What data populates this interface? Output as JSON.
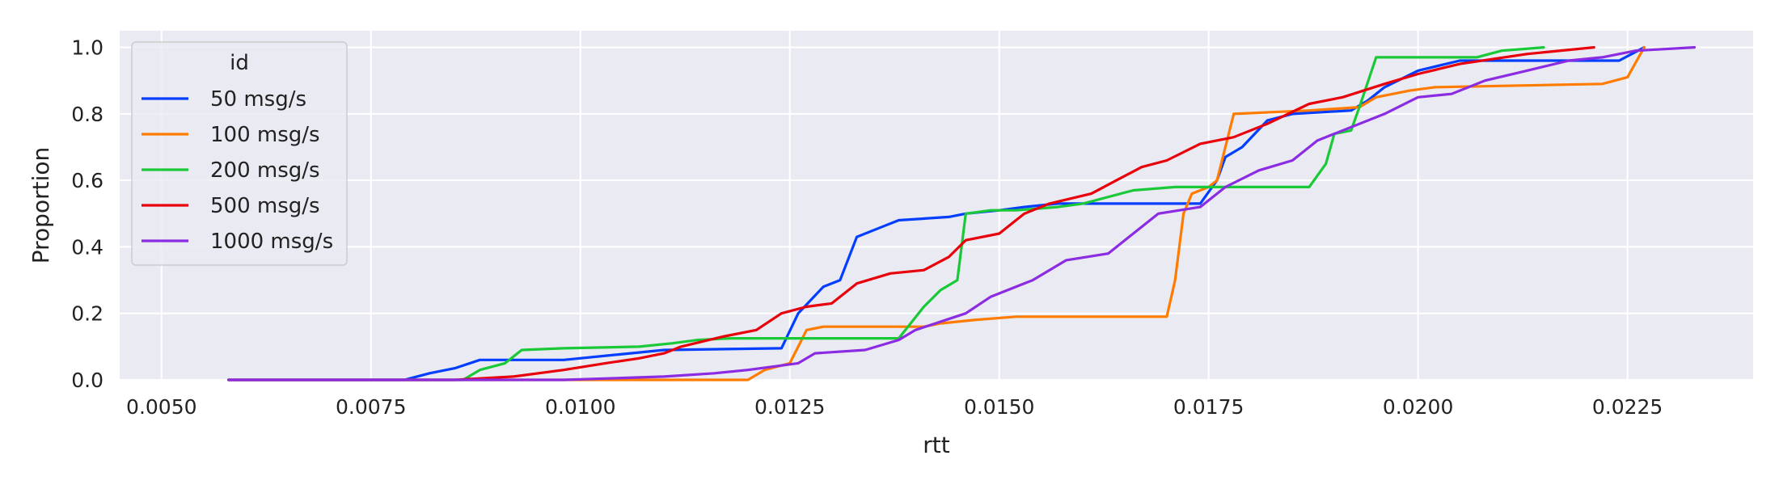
{
  "chart_data": {
    "type": "line",
    "title": "",
    "xlabel": "rtt",
    "ylabel": "Proportion",
    "xlim": [
      0.0045,
      0.024
    ],
    "ylim": [
      0.0,
      1.05
    ],
    "xticks": [
      0.005,
      0.0075,
      0.01,
      0.0125,
      0.015,
      0.0175,
      0.02,
      0.0225
    ],
    "xtick_labels": [
      "0.0050",
      "0.0075",
      "0.0100",
      "0.0125",
      "0.0150",
      "0.0175",
      "0.0200",
      "0.0225"
    ],
    "yticks": [
      0.0,
      0.2,
      0.4,
      0.6,
      0.8,
      1.0
    ],
    "ytick_labels": [
      "0.0",
      "0.2",
      "0.4",
      "0.6",
      "0.8",
      "1.0"
    ],
    "grid": true,
    "legend": {
      "title": "id",
      "position": "top-left"
    },
    "series": [
      {
        "name": "50 msg/s",
        "color": "#023eff",
        "points": [
          [
            0.0058,
            0.0
          ],
          [
            0.0079,
            0.0
          ],
          [
            0.0082,
            0.02
          ],
          [
            0.0085,
            0.035
          ],
          [
            0.0088,
            0.06
          ],
          [
            0.0098,
            0.06
          ],
          [
            0.0106,
            0.08
          ],
          [
            0.011,
            0.09
          ],
          [
            0.0124,
            0.095
          ],
          [
            0.0126,
            0.2
          ],
          [
            0.0129,
            0.28
          ],
          [
            0.0131,
            0.3
          ],
          [
            0.0133,
            0.43
          ],
          [
            0.0136,
            0.46
          ],
          [
            0.0138,
            0.48
          ],
          [
            0.0144,
            0.49
          ],
          [
            0.0146,
            0.5
          ],
          [
            0.015,
            0.51
          ],
          [
            0.0153,
            0.52
          ],
          [
            0.0157,
            0.53
          ],
          [
            0.0174,
            0.53
          ],
          [
            0.0176,
            0.6
          ],
          [
            0.0177,
            0.67
          ],
          [
            0.0179,
            0.7
          ],
          [
            0.0182,
            0.78
          ],
          [
            0.0185,
            0.8
          ],
          [
            0.0192,
            0.81
          ],
          [
            0.0194,
            0.84
          ],
          [
            0.0196,
            0.88
          ],
          [
            0.02,
            0.93
          ],
          [
            0.0205,
            0.96
          ],
          [
            0.0224,
            0.96
          ],
          [
            0.0227,
            1.0
          ]
        ]
      },
      {
        "name": "100 msg/s",
        "color": "#ff7c00",
        "points": [
          [
            0.0058,
            0.0
          ],
          [
            0.012,
            0.0
          ],
          [
            0.0122,
            0.03
          ],
          [
            0.0125,
            0.05
          ],
          [
            0.0126,
            0.1
          ],
          [
            0.0127,
            0.15
          ],
          [
            0.0129,
            0.16
          ],
          [
            0.0141,
            0.16
          ],
          [
            0.0143,
            0.17
          ],
          [
            0.0147,
            0.18
          ],
          [
            0.0152,
            0.19
          ],
          [
            0.017,
            0.19
          ],
          [
            0.0171,
            0.3
          ],
          [
            0.0172,
            0.5
          ],
          [
            0.0173,
            0.56
          ],
          [
            0.0175,
            0.58
          ],
          [
            0.0176,
            0.6
          ],
          [
            0.0178,
            0.8
          ],
          [
            0.0187,
            0.81
          ],
          [
            0.0193,
            0.82
          ],
          [
            0.0195,
            0.85
          ],
          [
            0.0199,
            0.87
          ],
          [
            0.0202,
            0.88
          ],
          [
            0.0222,
            0.89
          ],
          [
            0.0225,
            0.91
          ],
          [
            0.0227,
            1.0
          ]
        ]
      },
      {
        "name": "200 msg/s",
        "color": "#1ac938",
        "points": [
          [
            0.0058,
            0.0
          ],
          [
            0.0086,
            0.0
          ],
          [
            0.0088,
            0.03
          ],
          [
            0.0091,
            0.05
          ],
          [
            0.0093,
            0.09
          ],
          [
            0.0098,
            0.095
          ],
          [
            0.0107,
            0.1
          ],
          [
            0.0111,
            0.11
          ],
          [
            0.0114,
            0.12
          ],
          [
            0.0118,
            0.125
          ],
          [
            0.0138,
            0.125
          ],
          [
            0.0141,
            0.22
          ],
          [
            0.0143,
            0.27
          ],
          [
            0.0145,
            0.3
          ],
          [
            0.0146,
            0.5
          ],
          [
            0.0149,
            0.51
          ],
          [
            0.0152,
            0.51
          ],
          [
            0.0157,
            0.52
          ],
          [
            0.016,
            0.53
          ],
          [
            0.0166,
            0.57
          ],
          [
            0.0171,
            0.58
          ],
          [
            0.0187,
            0.58
          ],
          [
            0.0189,
            0.65
          ],
          [
            0.019,
            0.74
          ],
          [
            0.0192,
            0.75
          ],
          [
            0.0193,
            0.82
          ],
          [
            0.0195,
            0.97
          ],
          [
            0.0207,
            0.97
          ],
          [
            0.021,
            0.99
          ],
          [
            0.0215,
            1.0
          ]
        ]
      },
      {
        "name": "500 msg/s",
        "color": "#e8000b",
        "points": [
          [
            0.0058,
            0.0
          ],
          [
            0.0085,
            0.0
          ],
          [
            0.0092,
            0.01
          ],
          [
            0.0098,
            0.03
          ],
          [
            0.0103,
            0.05
          ],
          [
            0.0107,
            0.065
          ],
          [
            0.011,
            0.08
          ],
          [
            0.0112,
            0.1
          ],
          [
            0.0117,
            0.13
          ],
          [
            0.0121,
            0.15
          ],
          [
            0.0124,
            0.2
          ],
          [
            0.0127,
            0.22
          ],
          [
            0.013,
            0.23
          ],
          [
            0.0133,
            0.29
          ],
          [
            0.0137,
            0.32
          ],
          [
            0.0141,
            0.33
          ],
          [
            0.0144,
            0.37
          ],
          [
            0.0146,
            0.42
          ],
          [
            0.015,
            0.44
          ],
          [
            0.0153,
            0.5
          ],
          [
            0.0156,
            0.53
          ],
          [
            0.0161,
            0.56
          ],
          [
            0.0164,
            0.6
          ],
          [
            0.0167,
            0.64
          ],
          [
            0.017,
            0.66
          ],
          [
            0.0174,
            0.71
          ],
          [
            0.0178,
            0.73
          ],
          [
            0.0182,
            0.77
          ],
          [
            0.0187,
            0.83
          ],
          [
            0.0191,
            0.85
          ],
          [
            0.0196,
            0.89
          ],
          [
            0.02,
            0.92
          ],
          [
            0.0205,
            0.95
          ],
          [
            0.0213,
            0.98
          ],
          [
            0.0221,
            1.0
          ]
        ]
      },
      {
        "name": "1000 msg/s",
        "color": "#8b2be2",
        "points": [
          [
            0.0058,
            0.0
          ],
          [
            0.0098,
            0.0
          ],
          [
            0.011,
            0.01
          ],
          [
            0.0116,
            0.02
          ],
          [
            0.012,
            0.03
          ],
          [
            0.0126,
            0.05
          ],
          [
            0.0128,
            0.08
          ],
          [
            0.0134,
            0.09
          ],
          [
            0.0138,
            0.12
          ],
          [
            0.014,
            0.15
          ],
          [
            0.0146,
            0.2
          ],
          [
            0.0149,
            0.25
          ],
          [
            0.0154,
            0.3
          ],
          [
            0.0158,
            0.36
          ],
          [
            0.0163,
            0.38
          ],
          [
            0.0166,
            0.44
          ],
          [
            0.0169,
            0.5
          ],
          [
            0.0174,
            0.52
          ],
          [
            0.0177,
            0.58
          ],
          [
            0.0181,
            0.63
          ],
          [
            0.0185,
            0.66
          ],
          [
            0.0188,
            0.72
          ],
          [
            0.0192,
            0.76
          ],
          [
            0.0196,
            0.8
          ],
          [
            0.02,
            0.85
          ],
          [
            0.0204,
            0.86
          ],
          [
            0.0208,
            0.9
          ],
          [
            0.0213,
            0.93
          ],
          [
            0.0218,
            0.96
          ],
          [
            0.0222,
            0.97
          ],
          [
            0.0226,
            0.99
          ],
          [
            0.0233,
            1.0
          ]
        ]
      }
    ]
  }
}
